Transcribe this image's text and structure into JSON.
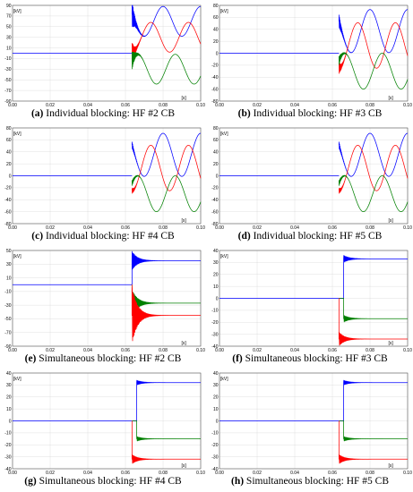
{
  "chart_data": [
    {
      "type": "line",
      "letter": "(a)",
      "caption": "Individual blocking: HF #2 CB",
      "ylabel": "[kV]",
      "xlabel": "[s]",
      "xlim": [
        0,
        0.1
      ],
      "ylim": [
        -90,
        90
      ],
      "xticks": [
        "0.00",
        "0.02",
        "0.04",
        "0.06",
        "0.08",
        "0.10"
      ],
      "yticks": [
        "90",
        "70",
        "50",
        "30",
        "10",
        "-10",
        "-30",
        "-50",
        "-70",
        "-90"
      ],
      "ytick_values": [
        90,
        70,
        50,
        30,
        10,
        -10,
        -30,
        -50,
        -70,
        -90
      ],
      "pre_level": 0,
      "event_time": 0.0635,
      "waveform": "sine",
      "series": [
        {
          "color": "#0000ff",
          "offset": 60,
          "amplitude": 28,
          "noise_peak": 28
        },
        {
          "color": "#ff0000",
          "offset": 30,
          "amplitude": 28,
          "noise_peak": 20
        },
        {
          "color": "#008000",
          "offset": -30,
          "amplitude": 28,
          "noise_peak": 18
        }
      ]
    },
    {
      "type": "line",
      "letter": "(b)",
      "caption": "Individual blocking: HF #3 CB",
      "ylabel": "[kV]",
      "xlabel": "[s]",
      "xlim": [
        0,
        0.1
      ],
      "ylim": [
        -80,
        80
      ],
      "xticks": [
        "0.00",
        "0.02",
        "0.04",
        "0.06",
        "0.08",
        "0.10"
      ],
      "yticks": [
        "80",
        "60",
        "40",
        "20",
        "0",
        "-20",
        "-40",
        "-60",
        "-80"
      ],
      "ytick_values": [
        80,
        60,
        40,
        20,
        0,
        -20,
        -40,
        -60,
        -80
      ],
      "pre_level": 0,
      "event_time": 0.0635,
      "waveform": "sine",
      "series": [
        {
          "color": "#0000ff",
          "offset": 37,
          "amplitude": 36,
          "noise_peak": 12
        },
        {
          "color": "#ff0000",
          "offset": 13,
          "amplitude": 38,
          "noise_peak": 10
        },
        {
          "color": "#008000",
          "offset": -30,
          "amplitude": 30,
          "noise_peak": 8
        }
      ]
    },
    {
      "type": "line",
      "letter": "(c)",
      "caption": "Individual blocking: HF #4 CB",
      "ylabel": "[kV]",
      "xlabel": "[s]",
      "xlim": [
        0,
        0.1
      ],
      "ylim": [
        -80,
        80
      ],
      "xticks": [
        "0.00",
        "0.02",
        "0.04",
        "0.06",
        "0.08",
        "0.10"
      ],
      "yticks": [
        "80",
        "60",
        "40",
        "20",
        "0",
        "-20",
        "-40",
        "-60",
        "-80"
      ],
      "ytick_values": [
        80,
        60,
        40,
        20,
        0,
        -20,
        -40,
        -60,
        -80
      ],
      "pre_level": 0,
      "event_time": 0.0635,
      "waveform": "sine",
      "series": [
        {
          "color": "#0000ff",
          "offset": 35,
          "amplitude": 36,
          "noise_peak": 6
        },
        {
          "color": "#ff0000",
          "offset": 13,
          "amplitude": 38,
          "noise_peak": 5
        },
        {
          "color": "#008000",
          "offset": -30,
          "amplitude": 30,
          "noise_peak": 5
        }
      ]
    },
    {
      "type": "line",
      "letter": "(d)",
      "caption": "Individual blocking: HF #5 CB",
      "ylabel": "[kV]",
      "xlabel": "[s]",
      "xlim": [
        0,
        0.1
      ],
      "ylim": [
        -80,
        80
      ],
      "xticks": [
        "0.00",
        "0.02",
        "0.04",
        "0.06",
        "0.08",
        "0.10"
      ],
      "yticks": [
        "80",
        "60",
        "40",
        "20",
        "0",
        "-20",
        "-40",
        "-60",
        "-80"
      ],
      "ytick_values": [
        80,
        60,
        40,
        20,
        0,
        -20,
        -40,
        -60,
        -80
      ],
      "pre_level": 0,
      "event_time": 0.0635,
      "waveform": "sine",
      "series": [
        {
          "color": "#0000ff",
          "offset": 35,
          "amplitude": 36,
          "noise_peak": 6
        },
        {
          "color": "#ff0000",
          "offset": 13,
          "amplitude": 38,
          "noise_peak": 5
        },
        {
          "color": "#008000",
          "offset": -30,
          "amplitude": 30,
          "noise_peak": 5
        }
      ]
    },
    {
      "type": "line",
      "letter": "(e)",
      "caption": "Simultaneous blocking: HF #2 CB",
      "ylabel": "[kV]",
      "xlabel": "[s]",
      "xlim": [
        0,
        0.1
      ],
      "ylim": [
        -90,
        50
      ],
      "xticks": [
        "0.00",
        "0.02",
        "0.04",
        "0.06",
        "0.08",
        "0.10"
      ],
      "yticks": [
        "50",
        "30",
        "10",
        "-10",
        "-30",
        "-50",
        "-70",
        "-90"
      ],
      "ytick_values": [
        50,
        30,
        10,
        -10,
        -30,
        -50,
        -70,
        -90
      ],
      "pre_level": 0,
      "event_time": 0.0635,
      "waveform": "step",
      "series": [
        {
          "color": "#0000ff",
          "level": 35,
          "noise_peak": 14
        },
        {
          "color": "#008000",
          "level": -27,
          "noise_peak": 20
        },
        {
          "color": "#ff0000",
          "level": -45,
          "noise_peak": 42
        }
      ]
    },
    {
      "type": "line",
      "letter": "(f)",
      "caption": "Simultaneous blocking: HF #3 CB",
      "ylabel": "[kV]",
      "xlabel": "[s]",
      "xlim": [
        0,
        0.1
      ],
      "ylim": [
        -40,
        40
      ],
      "xticks": [
        "0.00",
        "0.02",
        "0.04",
        "0.06",
        "0.08",
        "0.10"
      ],
      "yticks": [
        "40",
        "30",
        "20",
        "10",
        "0",
        "-10",
        "-20",
        "-30",
        "-40"
      ],
      "ytick_values": [
        40,
        30,
        20,
        10,
        0,
        -10,
        -20,
        -30,
        -40
      ],
      "pre_level": 0,
      "event_time": 0.0635,
      "waveform": "step",
      "series": [
        {
          "color": "#0000ff",
          "level": 33,
          "noise_peak": 3,
          "edge_time": 0.066
        },
        {
          "color": "#008000",
          "level": -17,
          "noise_peak": 3,
          "edge_time": 0.066
        },
        {
          "color": "#ff0000",
          "level": -34,
          "noise_peak": 6,
          "edge_time": 0.0635
        }
      ]
    },
    {
      "type": "line",
      "letter": "(g)",
      "caption": "Simultaneous blocking: HF #4 CB",
      "ylabel": "[kV]",
      "xlabel": "[s]",
      "xlim": [
        0,
        0.1
      ],
      "ylim": [
        -40,
        40
      ],
      "xticks": [
        "0.00",
        "0.02",
        "0.04",
        "0.06",
        "0.08",
        "0.10"
      ],
      "yticks": [
        "40",
        "30",
        "20",
        "10",
        "0",
        "-10",
        "-20",
        "-30",
        "-40"
      ],
      "ytick_values": [
        40,
        30,
        20,
        10,
        0,
        -10,
        -20,
        -30,
        -40
      ],
      "pre_level": 0,
      "event_time": 0.0635,
      "waveform": "step",
      "series": [
        {
          "color": "#0000ff",
          "level": 32,
          "noise_peak": 2,
          "edge_time": 0.066
        },
        {
          "color": "#008000",
          "level": -15,
          "noise_peak": 2,
          "edge_time": 0.066
        },
        {
          "color": "#ff0000",
          "level": -32,
          "noise_peak": 4,
          "edge_time": 0.0635
        }
      ]
    },
    {
      "type": "line",
      "letter": "(h)",
      "caption": "Simultaneous blocking: HF #5 CB",
      "ylabel": "[kV]",
      "xlabel": "[s]",
      "xlim": [
        0,
        0.1
      ],
      "ylim": [
        -40,
        40
      ],
      "xticks": [
        "0.00",
        "0.02",
        "0.04",
        "0.06",
        "0.08",
        "0.10"
      ],
      "yticks": [
        "40",
        "30",
        "20",
        "10",
        "0",
        "-10",
        "-20",
        "-30",
        "-40"
      ],
      "ytick_values": [
        40,
        30,
        20,
        10,
        0,
        -10,
        -20,
        -30,
        -40
      ],
      "pre_level": 0,
      "event_time": 0.0635,
      "waveform": "step",
      "series": [
        {
          "color": "#0000ff",
          "level": 32,
          "noise_peak": 2,
          "edge_time": 0.066
        },
        {
          "color": "#008000",
          "level": -15,
          "noise_peak": 2,
          "edge_time": 0.066
        },
        {
          "color": "#ff0000",
          "level": -32,
          "noise_peak": 4,
          "edge_time": 0.0635
        }
      ]
    }
  ]
}
